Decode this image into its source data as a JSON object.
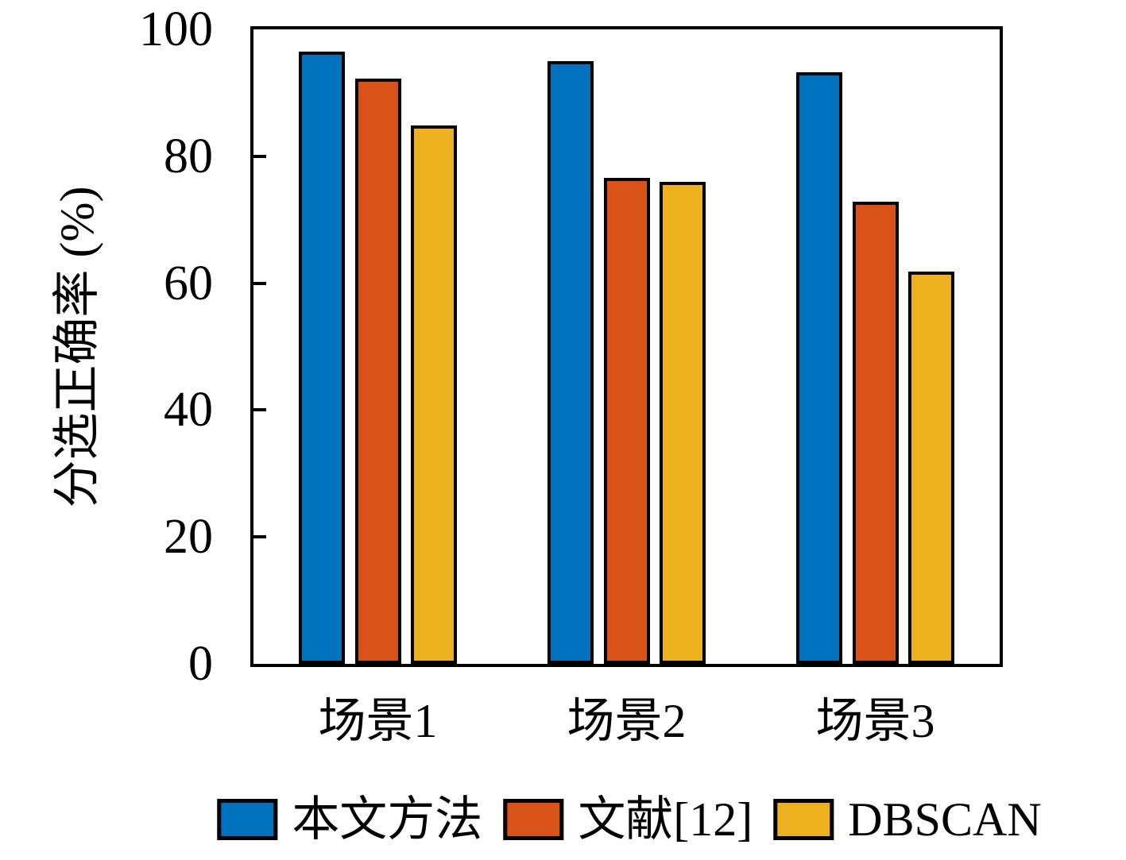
{
  "figure": {
    "background_color": "#ffffff",
    "axis_color": "#000000"
  },
  "chart_data": {
    "type": "bar",
    "title": "",
    "xlabel": "",
    "ylabel": "分选正确率 (%)",
    "categories": [
      "场景1",
      "场景2",
      "场景3"
    ],
    "series": [
      {
        "name": "本文方法",
        "color": "#0072BD",
        "values": [
          96.5,
          95.0,
          93.2
        ]
      },
      {
        "name": "文献[12]",
        "color": "#D95319",
        "values": [
          92.3,
          76.6,
          72.9
        ]
      },
      {
        "name": "DBSCAN",
        "color": "#EDB120",
        "values": [
          84.9,
          76.0,
          61.8
        ]
      }
    ],
    "ylim": [
      0,
      100
    ],
    "yticks": [
      0,
      20,
      40,
      60,
      80,
      100
    ],
    "grid": false,
    "legend_position": "bottom",
    "bar_edge_color": "#000000",
    "tick_direction": "in"
  }
}
